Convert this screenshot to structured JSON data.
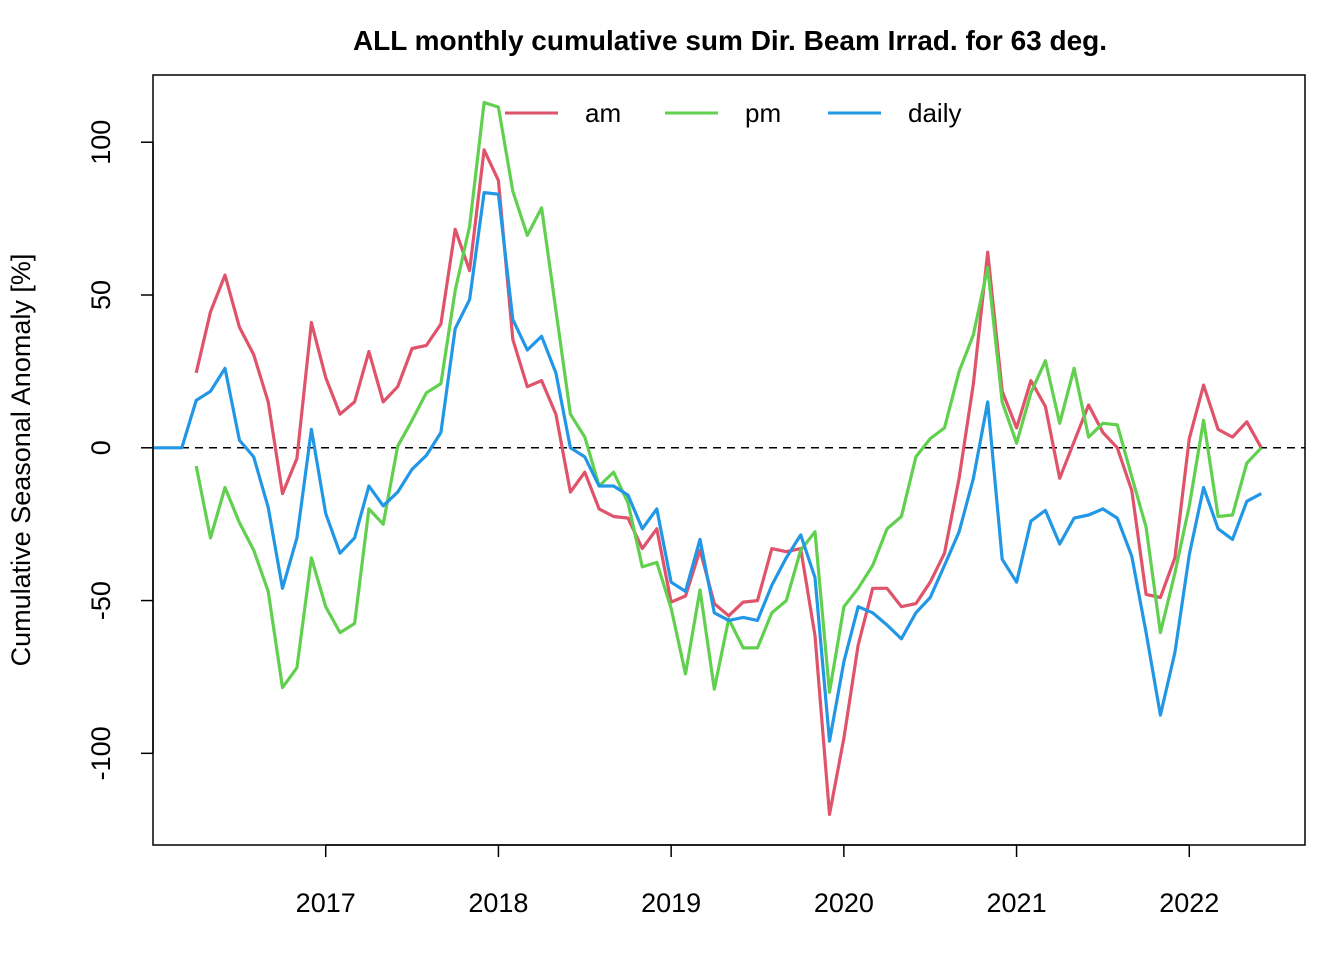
{
  "chart_data": {
    "type": "line",
    "title": "ALL monthly cumulative sum  Dir. Beam Irrad. for 63 deg.",
    "xlabel": "",
    "ylabel": "Cumulative Seasonal Anomaly [%]",
    "xlim": [
      2016.0,
      2022.67
    ],
    "ylim": [
      -130,
      122
    ],
    "xticks": [
      2017,
      2018,
      2019,
      2020,
      2021,
      2022
    ],
    "xtick_labels": [
      "2017",
      "2018",
      "2019",
      "2020",
      "2021",
      "2022"
    ],
    "yticks": [
      -100,
      -50,
      0,
      50,
      100
    ],
    "ytick_labels": [
      "-100",
      "-50",
      "0",
      "50",
      "100"
    ],
    "reference_line": {
      "y": 0,
      "style": "dashed"
    },
    "grid": false,
    "legend": {
      "position": "top",
      "orientation": "horizontal"
    },
    "series": [
      {
        "name": "am",
        "color": "#DF536B",
        "x": [
          2016.25,
          2016.333,
          2016.417,
          2016.5,
          2016.583,
          2016.667,
          2016.75,
          2016.833,
          2016.917,
          2017.0,
          2017.083,
          2017.167,
          2017.25,
          2017.333,
          2017.417,
          2017.5,
          2017.583,
          2017.667,
          2017.75,
          2017.833,
          2017.917,
          2018.0,
          2018.083,
          2018.167,
          2018.25,
          2018.333,
          2018.417,
          2018.5,
          2018.583,
          2018.667,
          2018.75,
          2018.833,
          2018.917,
          2019.0,
          2019.083,
          2019.167,
          2019.25,
          2019.333,
          2019.417,
          2019.5,
          2019.583,
          2019.667,
          2019.75,
          2019.833,
          2019.917,
          2020.0,
          2020.083,
          2020.167,
          2020.25,
          2020.333,
          2020.417,
          2020.5,
          2020.583,
          2020.667,
          2020.75,
          2020.833,
          2020.917,
          2021.0,
          2021.083,
          2021.167,
          2021.25,
          2021.333,
          2021.417,
          2021.5,
          2021.583,
          2021.667,
          2021.75,
          2021.833,
          2021.917,
          2022.0,
          2022.083,
          2022.167,
          2022.25,
          2022.333,
          2022.417
        ],
        "y": [
          24.5,
          44.5,
          56.5,
          39.5,
          30.5,
          15,
          -15,
          -3.5,
          41,
          23,
          11,
          15,
          31.5,
          15,
          20,
          32.5,
          33.5,
          40.5,
          71.5,
          58,
          97.5,
          87.5,
          35.5,
          20,
          22,
          11,
          -14.5,
          -8,
          -20,
          -22.5,
          -23,
          -33,
          -26.5,
          -50.5,
          -48.5,
          -33.5,
          -51,
          -55,
          -50.5,
          -50,
          -33,
          -34,
          -33,
          -61.5,
          -120,
          -95,
          -64.5,
          -46,
          -46,
          -52,
          -51,
          -44,
          -34.5,
          -10,
          21,
          64,
          18.5,
          6.5,
          22,
          13.5,
          -10,
          2,
          14,
          5,
          0,
          -14,
          -48,
          -49,
          -36,
          3,
          20.5,
          6,
          3.5,
          8.5,
          0
        ]
      },
      {
        "name": "pm",
        "color": "#61D04F",
        "x": [
          2016.25,
          2016.333,
          2016.417,
          2016.5,
          2016.583,
          2016.667,
          2016.75,
          2016.833,
          2016.917,
          2017.0,
          2017.083,
          2017.167,
          2017.25,
          2017.333,
          2017.417,
          2017.5,
          2017.583,
          2017.667,
          2017.75,
          2017.833,
          2017.917,
          2018.0,
          2018.083,
          2018.167,
          2018.25,
          2018.333,
          2018.417,
          2018.5,
          2018.583,
          2018.667,
          2018.75,
          2018.833,
          2018.917,
          2019.0,
          2019.083,
          2019.167,
          2019.25,
          2019.333,
          2019.417,
          2019.5,
          2019.583,
          2019.667,
          2019.75,
          2019.833,
          2019.917,
          2020.0,
          2020.083,
          2020.167,
          2020.25,
          2020.333,
          2020.417,
          2020.5,
          2020.583,
          2020.667,
          2020.75,
          2020.833,
          2020.917,
          2021.0,
          2021.083,
          2021.167,
          2021.25,
          2021.333,
          2021.417,
          2021.5,
          2021.583,
          2021.667,
          2021.75,
          2021.833,
          2021.917,
          2022.0,
          2022.083,
          2022.167,
          2022.25,
          2022.333,
          2022.417
        ],
        "y": [
          -6,
          -29.5,
          -13,
          -24.5,
          -33.5,
          -47,
          -78.5,
          -72,
          -36,
          -52,
          -60.5,
          -57.5,
          -20,
          -25,
          0.5,
          9,
          18,
          21,
          51.5,
          72.5,
          113,
          111.5,
          84,
          69.5,
          78.5,
          45,
          11,
          3.5,
          -12.5,
          -8,
          -18,
          -39,
          -37.5,
          -52.5,
          -74,
          -46.5,
          -79,
          -56,
          -65.5,
          -65.5,
          -54,
          -50,
          -33.5,
          -27.5,
          -80,
          -52,
          -46,
          -38.5,
          -26.5,
          -22.5,
          -3,
          3,
          6.5,
          25,
          37,
          59,
          15,
          1.5,
          18,
          28.5,
          8,
          26,
          3.5,
          8,
          7.5,
          -9.5,
          -26,
          -60.5,
          -41,
          -19,
          9,
          -22.5,
          -22,
          -5,
          0
        ]
      },
      {
        "name": "daily",
        "color": "#2297E6",
        "x": [
          2016.0,
          2016.083,
          2016.167,
          2016.25,
          2016.333,
          2016.417,
          2016.5,
          2016.583,
          2016.667,
          2016.75,
          2016.833,
          2016.917,
          2017.0,
          2017.083,
          2017.167,
          2017.25,
          2017.333,
          2017.417,
          2017.5,
          2017.583,
          2017.667,
          2017.75,
          2017.833,
          2017.917,
          2018.0,
          2018.083,
          2018.167,
          2018.25,
          2018.333,
          2018.417,
          2018.5,
          2018.583,
          2018.667,
          2018.75,
          2018.833,
          2018.917,
          2019.0,
          2019.083,
          2019.167,
          2019.25,
          2019.333,
          2019.417,
          2019.5,
          2019.583,
          2019.667,
          2019.75,
          2019.833,
          2019.917,
          2020.0,
          2020.083,
          2020.167,
          2020.25,
          2020.333,
          2020.417,
          2020.5,
          2020.583,
          2020.667,
          2020.75,
          2020.833,
          2020.917,
          2021.0,
          2021.083,
          2021.167,
          2021.25,
          2021.333,
          2021.417,
          2021.5,
          2021.583,
          2021.667,
          2021.75,
          2021.833,
          2021.917,
          2022.0,
          2022.083,
          2022.167,
          2022.25,
          2022.333,
          2022.417
        ],
        "y": [
          0,
          0,
          0,
          15.5,
          18.5,
          26,
          2.5,
          -3,
          -19.5,
          -46,
          -29.5,
          6,
          -21.5,
          -34.5,
          -29.5,
          -12.5,
          -19,
          -14.5,
          -7,
          -2.5,
          5,
          39,
          48.5,
          83.5,
          83,
          42,
          32,
          36.5,
          24.5,
          0,
          -3,
          -12.5,
          -12.5,
          -15.5,
          -26.5,
          -20,
          -44,
          -47,
          -30,
          -54,
          -56.5,
          -55.5,
          -56.5,
          -45,
          -36,
          -28.5,
          -42.5,
          -96,
          -70,
          -52,
          -54,
          -58,
          -62.5,
          -54,
          -49,
          -38.5,
          -27.5,
          -10,
          15,
          -36.5,
          -44,
          -24,
          -20.5,
          -31.5,
          -23,
          -22,
          -20,
          -23,
          -35.5,
          -60.5,
          -87.5,
          -67,
          -35,
          -13,
          -26.5,
          -30,
          -17.5,
          -15
        ]
      }
    ]
  }
}
